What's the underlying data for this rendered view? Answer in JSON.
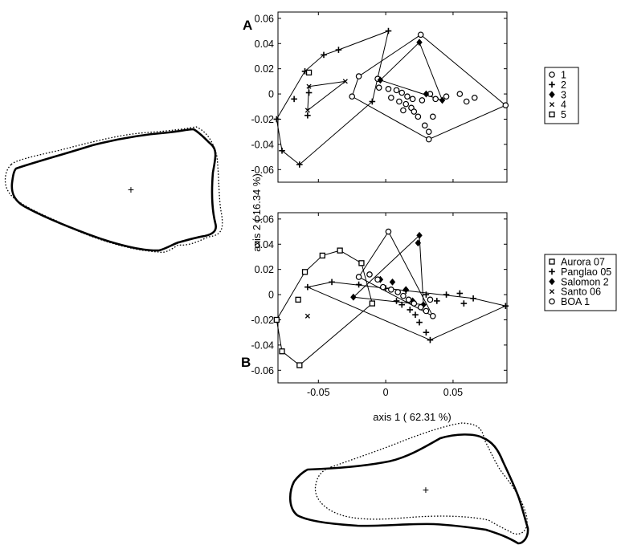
{
  "figure": {
    "panel_a_label": "A",
    "panel_b_label": "B",
    "shared_ylabel": "axis 2 ( 16.34 %)",
    "shared_xlabel": "axis 1 ( 62.31 %)",
    "outline_centroid_marker": "+"
  },
  "chart_data": [
    {
      "type": "scatter",
      "panel": "A",
      "xlim": [
        -0.08,
        0.09
      ],
      "ylim": [
        -0.07,
        0.065
      ],
      "xticks": [
        -0.05,
        0,
        0.05
      ],
      "yticks": [
        -0.06,
        -0.04,
        -0.02,
        0,
        0.02,
        0.04,
        0.06
      ],
      "xtick_labels": [
        "-0.05",
        "0",
        "0.05"
      ],
      "ytick_labels": [
        "-0.06",
        "-0.04",
        "-0.02",
        "0",
        "0.02",
        "0.04",
        "0.06"
      ],
      "grid": false,
      "legend_position": "right",
      "hulls_drawn": true,
      "series": [
        {
          "name": "1",
          "marker": "circle",
          "points": [
            [
              0.089,
              -0.009
            ],
            [
              0.026,
              0.047
            ],
            [
              0.032,
              -0.036
            ],
            [
              -0.025,
              -0.002
            ],
            [
              -0.02,
              0.014
            ],
            [
              -0.006,
              0.012
            ],
            [
              -0.005,
              0.005
            ],
            [
              0.002,
              0.004
            ],
            [
              0.008,
              0.003
            ],
            [
              0.012,
              0.001
            ],
            [
              0.016,
              -0.002
            ],
            [
              0.02,
              -0.004
            ],
            [
              0.004,
              -0.003
            ],
            [
              0.01,
              -0.006
            ],
            [
              0.015,
              -0.008
            ],
            [
              0.019,
              -0.011
            ],
            [
              0.013,
              -0.013
            ],
            [
              0.021,
              -0.014
            ],
            [
              0.024,
              -0.018
            ],
            [
              0.029,
              -0.025
            ],
            [
              0.032,
              -0.03
            ],
            [
              0.035,
              -0.018
            ],
            [
              0.027,
              -0.005
            ],
            [
              0.033,
              0.0
            ],
            [
              0.037,
              -0.004
            ],
            [
              0.045,
              -0.002
            ],
            [
              0.055,
              0.0
            ],
            [
              0.06,
              -0.006
            ],
            [
              0.066,
              -0.003
            ]
          ]
        },
        {
          "name": "2",
          "marker": "plus",
          "points": [
            [
              -0.081,
              -0.02
            ],
            [
              -0.077,
              -0.045
            ],
            [
              -0.064,
              -0.056
            ],
            [
              -0.068,
              -0.004
            ],
            [
              -0.06,
              0.018
            ],
            [
              -0.046,
              0.031
            ],
            [
              -0.035,
              0.035
            ],
            [
              0.002,
              0.05
            ],
            [
              -0.01,
              -0.006
            ],
            [
              -0.058,
              -0.017
            ],
            [
              -0.057,
              0.001
            ]
          ]
        },
        {
          "name": "3",
          "marker": "diamond",
          "points": [
            [
              0.025,
              0.041
            ],
            [
              0.042,
              -0.005
            ],
            [
              -0.004,
              0.011
            ],
            [
              0.03,
              0.0
            ]
          ]
        },
        {
          "name": "4",
          "marker": "x",
          "points": [
            [
              -0.057,
              0.006
            ],
            [
              -0.03,
              0.01
            ],
            [
              -0.058,
              -0.013
            ]
          ]
        },
        {
          "name": "5",
          "marker": "square",
          "points": [
            [
              -0.057,
              0.017
            ]
          ]
        }
      ],
      "hulls": [
        {
          "series": "1",
          "points": [
            [
              -0.025,
              -0.002
            ],
            [
              -0.02,
              0.014
            ],
            [
              0.026,
              0.047
            ],
            [
              0.089,
              -0.009
            ],
            [
              0.032,
              -0.036
            ]
          ]
        },
        {
          "series": "2",
          "points": [
            [
              -0.081,
              -0.02
            ],
            [
              -0.06,
              0.018
            ],
            [
              -0.046,
              0.031
            ],
            [
              -0.035,
              0.035
            ],
            [
              0.002,
              0.05
            ],
            [
              -0.01,
              -0.006
            ],
            [
              -0.064,
              -0.056
            ],
            [
              -0.077,
              -0.045
            ]
          ]
        },
        {
          "series": "3",
          "points": [
            [
              -0.004,
              0.011
            ],
            [
              0.025,
              0.041
            ],
            [
              0.042,
              -0.005
            ]
          ]
        },
        {
          "series": "4",
          "points": [
            [
              -0.057,
              0.006
            ],
            [
              -0.03,
              0.01
            ],
            [
              -0.058,
              -0.013
            ]
          ]
        }
      ]
    },
    {
      "type": "scatter",
      "panel": "B",
      "xlim": [
        -0.08,
        0.09
      ],
      "ylim": [
        -0.07,
        0.065
      ],
      "xticks": [
        -0.05,
        0,
        0.05
      ],
      "yticks": [
        -0.06,
        -0.04,
        -0.02,
        0,
        0.02,
        0.04,
        0.06
      ],
      "xtick_labels": [
        "-0.05",
        "0",
        "0.05"
      ],
      "ytick_labels": [
        "-0.06",
        "-0.04",
        "-0.02",
        "0",
        "0.02",
        "0.04",
        "0.06"
      ],
      "grid": false,
      "legend_position": "right",
      "hulls_drawn": true,
      "series": [
        {
          "name": "Aurora 07",
          "marker": "square",
          "points": [
            [
              -0.081,
              -0.02
            ],
            [
              -0.077,
              -0.045
            ],
            [
              -0.064,
              -0.056
            ],
            [
              -0.065,
              -0.004
            ],
            [
              -0.06,
              0.018
            ],
            [
              -0.047,
              0.031
            ],
            [
              -0.034,
              0.035
            ],
            [
              -0.018,
              0.025
            ],
            [
              -0.01,
              -0.007
            ]
          ]
        },
        {
          "name": "Panglao 05",
          "marker": "plus",
          "points": [
            [
              -0.058,
              0.006
            ],
            [
              -0.04,
              0.01
            ],
            [
              -0.02,
              0.008
            ],
            [
              0.0,
              0.005
            ],
            [
              0.015,
              0.003
            ],
            [
              0.03,
              0.0
            ],
            [
              0.045,
              0.0
            ],
            [
              0.055,
              0.001
            ],
            [
              0.065,
              -0.003
            ],
            [
              0.089,
              -0.009
            ],
            [
              0.033,
              -0.036
            ],
            [
              0.03,
              -0.03
            ],
            [
              0.025,
              -0.022
            ],
            [
              0.022,
              -0.016
            ],
            [
              0.018,
              -0.012
            ],
            [
              0.012,
              -0.008
            ],
            [
              0.008,
              -0.005
            ],
            [
              0.038,
              -0.005
            ],
            [
              0.058,
              -0.007
            ]
          ]
        },
        {
          "name": "Salomon 2",
          "marker": "diamond",
          "points": [
            [
              0.025,
              0.047
            ],
            [
              0.024,
              0.041
            ],
            [
              -0.024,
              -0.002
            ],
            [
              0.005,
              0.01
            ],
            [
              0.015,
              0.004
            ],
            [
              0.02,
              -0.005
            ],
            [
              0.028,
              -0.008
            ],
            [
              -0.004,
              0.012
            ]
          ]
        },
        {
          "name": "Santo 06",
          "marker": "x",
          "points": [
            [
              -0.058,
              -0.017
            ]
          ]
        },
        {
          "name": "BOA 1",
          "marker": "circle",
          "points": [
            [
              0.002,
              0.05
            ],
            [
              -0.02,
              0.014
            ],
            [
              -0.012,
              0.016
            ],
            [
              -0.006,
              0.012
            ],
            [
              -0.002,
              0.006
            ],
            [
              0.004,
              0.004
            ],
            [
              0.009,
              0.002
            ],
            [
              0.013,
              -0.001
            ],
            [
              0.017,
              -0.004
            ],
            [
              0.021,
              -0.007
            ],
            [
              0.026,
              -0.01
            ],
            [
              0.03,
              -0.013
            ],
            [
              0.035,
              -0.017
            ],
            [
              0.033,
              -0.004
            ]
          ]
        }
      ],
      "hulls": [
        {
          "series": "Aurora 07",
          "points": [
            [
              -0.081,
              -0.02
            ],
            [
              -0.06,
              0.018
            ],
            [
              -0.047,
              0.031
            ],
            [
              -0.034,
              0.035
            ],
            [
              -0.018,
              0.025
            ],
            [
              -0.01,
              -0.007
            ],
            [
              -0.064,
              -0.056
            ],
            [
              -0.077,
              -0.045
            ]
          ]
        },
        {
          "series": "Panglao 05",
          "points": [
            [
              -0.058,
              0.006
            ],
            [
              -0.04,
              0.01
            ],
            [
              0.065,
              -0.003
            ],
            [
              0.089,
              -0.009
            ],
            [
              0.033,
              -0.036
            ]
          ]
        },
        {
          "series": "Salomon 2",
          "points": [
            [
              -0.024,
              -0.002
            ],
            [
              0.025,
              0.047
            ],
            [
              0.028,
              -0.008
            ]
          ]
        },
        {
          "series": "BOA 1",
          "points": [
            [
              -0.02,
              0.014
            ],
            [
              0.002,
              0.05
            ],
            [
              0.035,
              -0.017
            ]
          ]
        }
      ]
    }
  ]
}
